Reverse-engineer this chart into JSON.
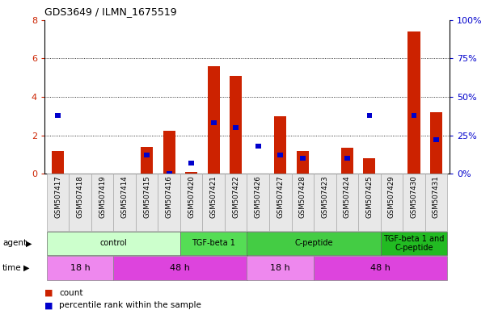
{
  "title": "GDS3649 / ILMN_1675519",
  "samples": [
    "GSM507417",
    "GSM507418",
    "GSM507419",
    "GSM507414",
    "GSM507415",
    "GSM507416",
    "GSM507420",
    "GSM507421",
    "GSM507422",
    "GSM507426",
    "GSM507427",
    "GSM507428",
    "GSM507423",
    "GSM507424",
    "GSM507425",
    "GSM507429",
    "GSM507430",
    "GSM507431"
  ],
  "count_values": [
    1.2,
    0.0,
    0.0,
    0.0,
    1.4,
    2.25,
    0.1,
    5.6,
    5.1,
    0.0,
    3.0,
    1.2,
    0.0,
    1.35,
    0.8,
    0.0,
    7.4,
    3.2
  ],
  "percentile_values_scaled": [
    0.38,
    0.0,
    0.0,
    0.0,
    0.12,
    0.0,
    0.07,
    0.33,
    0.3,
    0.18,
    0.12,
    0.1,
    0.0,
    0.1,
    0.38,
    0.0,
    0.38,
    0.22
  ],
  "bar_color_red": "#cc2200",
  "bar_color_blue": "#0000cc",
  "ylim_left": [
    0,
    8
  ],
  "ylim_right": [
    0,
    100
  ],
  "yticks_left": [
    0,
    2,
    4,
    6,
    8
  ],
  "yticks_right": [
    0,
    25,
    50,
    75,
    100
  ],
  "ytick_labels_right": [
    "0%",
    "25%",
    "50%",
    "75%",
    "100%"
  ],
  "agent_groups": [
    {
      "label": "control",
      "start": 0,
      "end": 5,
      "color": "#ccffcc"
    },
    {
      "label": "TGF-beta 1",
      "start": 6,
      "end": 8,
      "color": "#55dd55"
    },
    {
      "label": "C-peptide",
      "start": 9,
      "end": 14,
      "color": "#44cc44"
    },
    {
      "label": "TGF-beta 1 and\nC-peptide",
      "start": 15,
      "end": 17,
      "color": "#22bb22"
    }
  ],
  "time_groups": [
    {
      "label": "18 h",
      "start": 0,
      "end": 2,
      "color": "#ee88ee"
    },
    {
      "label": "48 h",
      "start": 3,
      "end": 8,
      "color": "#dd44dd"
    },
    {
      "label": "18 h",
      "start": 9,
      "end": 11,
      "color": "#ee88ee"
    },
    {
      "label": "48 h",
      "start": 12,
      "end": 17,
      "color": "#dd44dd"
    }
  ],
  "legend_count_label": "count",
  "legend_pct_label": "percentile rank within the sample",
  "bg_color": "#ffffff",
  "grid_color": "#000000",
  "tick_label_color_left": "#cc2200",
  "tick_label_color_right": "#0000cc",
  "cell_bg": "#e8e8e8",
  "cell_edge": "#aaaaaa"
}
